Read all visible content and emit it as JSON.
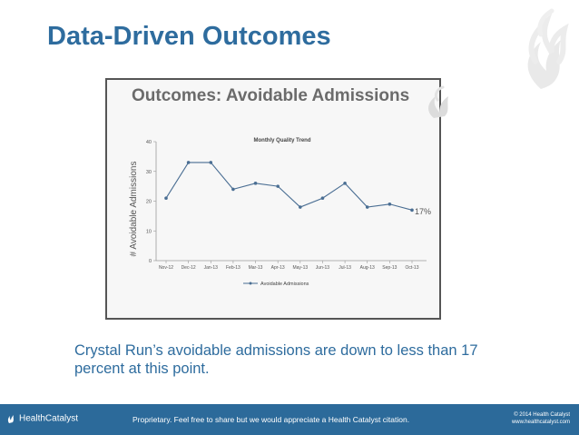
{
  "slide": {
    "title": "Data-Driven Outcomes",
    "inner_title": "Outcomes: Avoidable Admissions",
    "body_text": "Crystal Run’s avoidable admissions are down to less than 17 percent at this point."
  },
  "footer": {
    "brand": "HealthCatalyst",
    "note": "Proprietary. Feel free to share but we would appreciate a Health Catalyst citation.",
    "copyright": "© 2014 Health Catalyst",
    "website": "www.healthcatalyst.com"
  },
  "colors": {
    "title": "#2e6c9e",
    "footer_bg": "#2c6a9a",
    "series": "#4a6e93"
  },
  "chart_data": {
    "type": "line",
    "title": "Monthly Quality Trend",
    "ylabel": "# Avoidable Admissions",
    "xlabel": "",
    "ylim": [
      0,
      40
    ],
    "yticks": [
      0,
      10,
      20,
      30,
      40
    ],
    "grid": false,
    "legend_position": "bottom",
    "categories": [
      "Nov-12",
      "Dec-12",
      "Jan-13",
      "Feb-13",
      "Mar-13",
      "Apr-13",
      "May-13",
      "Jun-13",
      "Jul-13",
      "Aug-13",
      "Sep-13",
      "Oct-13"
    ],
    "series": [
      {
        "name": "Avoidable Admissions",
        "values": [
          21,
          33,
          33,
          24,
          26,
          25,
          18,
          21,
          26,
          18,
          19,
          17
        ]
      }
    ],
    "annotation": "17%"
  }
}
